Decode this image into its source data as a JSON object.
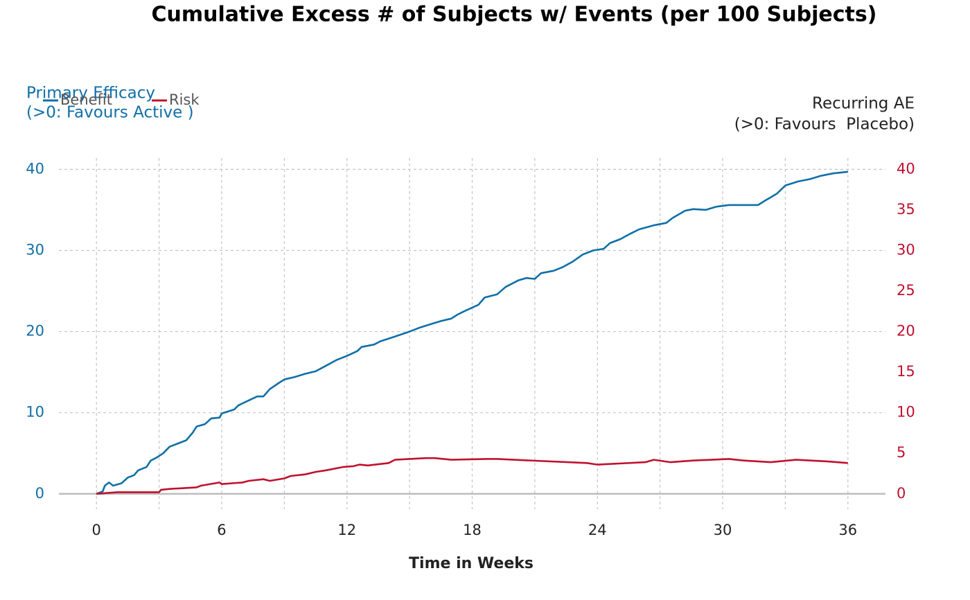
{
  "chart_data": {
    "type": "line",
    "title": "Cumulative Excess # of Subjects w/ Events (per 100 Subjects)",
    "xlabel": "Time in Weeks",
    "left_annotation": [
      "Primary Efficacy",
      "(>0: Favours Active )"
    ],
    "right_annotation": [
      "Recurring AE",
      "(>0: Favours  Placebo)"
    ],
    "left_color": "#0f6fa8",
    "right_color": "#c0102e",
    "xlim": [
      -1.8,
      37.8
    ],
    "xticks": [
      0,
      6,
      12,
      18,
      24,
      30,
      36
    ],
    "xminor": [
      3,
      9,
      15,
      21,
      27,
      33
    ],
    "ylim": [
      -1.9,
      41.4
    ],
    "yticks": [
      0,
      10,
      20,
      30,
      40
    ],
    "y2lim": [
      -1.9,
      41.4
    ],
    "y2ticks": [
      0,
      5,
      10,
      15,
      20,
      25,
      30,
      35,
      40
    ],
    "grid": true,
    "legend": "top-left",
    "series": [
      {
        "name": "Benefit",
        "color": "#0f6fa8",
        "x": [
          0,
          0.3,
          0.4,
          0.6,
          0.8,
          1.2,
          1.5,
          1.8,
          2.0,
          2.4,
          2.6,
          2.9,
          3.2,
          3.5,
          4.0,
          4.3,
          4.6,
          4.8,
          5.2,
          5.5,
          5.9,
          6.0,
          6.6,
          6.8,
          7.2,
          7.7,
          8.0,
          8.3,
          8.7,
          9.0,
          9.5,
          10.0,
          10.5,
          11.0,
          11.5,
          12.0,
          12.5,
          12.7,
          13.3,
          13.6,
          14.2,
          15.0,
          15.5,
          16.0,
          16.5,
          17.0,
          17.3,
          17.7,
          18.3,
          18.6,
          19.2,
          19.6,
          20.2,
          20.6,
          21.0,
          21.3,
          21.9,
          22.3,
          22.8,
          23.3,
          23.8,
          24.3,
          24.6,
          25.1,
          25.6,
          26.0,
          26.7,
          27.3,
          27.6,
          28.2,
          28.6,
          29.2,
          29.7,
          30.3,
          30.9,
          31.7,
          32.0,
          32.6,
          33.0,
          33.6,
          34.2,
          34.7,
          35.3,
          36.0
        ],
        "values": [
          0,
          0.3,
          1.0,
          1.4,
          1.0,
          1.3,
          2.0,
          2.3,
          2.9,
          3.3,
          4.1,
          4.5,
          5.0,
          5.8,
          6.3,
          6.6,
          7.5,
          8.3,
          8.6,
          9.3,
          9.4,
          9.9,
          10.4,
          10.9,
          11.4,
          12.0,
          12.0,
          12.9,
          13.6,
          14.1,
          14.4,
          14.8,
          15.1,
          15.8,
          16.5,
          17.0,
          17.6,
          18.1,
          18.4,
          18.8,
          19.3,
          20.0,
          20.5,
          20.9,
          21.3,
          21.6,
          22.1,
          22.6,
          23.3,
          24.2,
          24.6,
          25.5,
          26.3,
          26.6,
          26.5,
          27.2,
          27.5,
          27.9,
          28.6,
          29.5,
          30.0,
          30.2,
          30.9,
          31.4,
          32.1,
          32.6,
          33.1,
          33.4,
          34.0,
          34.9,
          35.1,
          35.0,
          35.4,
          35.6,
          35.6,
          35.6,
          36.1,
          37.0,
          38.0,
          38.5,
          38.8,
          39.2,
          39.5,
          39.7
        ]
      },
      {
        "name": "Risk",
        "color": "#c0102e",
        "axis": "y2",
        "x": [
          0,
          0.5,
          1.0,
          3.0,
          3.1,
          3.5,
          4.8,
          5.0,
          5.9,
          6.0,
          6.5,
          7.0,
          7.3,
          8.0,
          8.3,
          9.0,
          9.3,
          10.0,
          10.5,
          11.0,
          11.8,
          12.3,
          12.6,
          13.0,
          14.0,
          14.3,
          15.8,
          16.2,
          17.0,
          18.7,
          19.2,
          20.0,
          23.5,
          24.0,
          26.3,
          26.7,
          27.5,
          28.6,
          30.3,
          31.0,
          32.3,
          33.5,
          35.0,
          36.0
        ],
        "values": [
          0,
          0.1,
          0.2,
          0.2,
          0.5,
          0.6,
          0.8,
          1.0,
          1.4,
          1.2,
          1.3,
          1.4,
          1.6,
          1.8,
          1.6,
          1.9,
          2.2,
          2.4,
          2.7,
          2.9,
          3.3,
          3.4,
          3.6,
          3.5,
          3.8,
          4.2,
          4.4,
          4.4,
          4.2,
          4.3,
          4.3,
          4.2,
          3.8,
          3.6,
          3.9,
          4.2,
          3.9,
          4.1,
          4.3,
          4.1,
          3.9,
          4.2,
          4.0,
          3.8
        ]
      }
    ]
  }
}
